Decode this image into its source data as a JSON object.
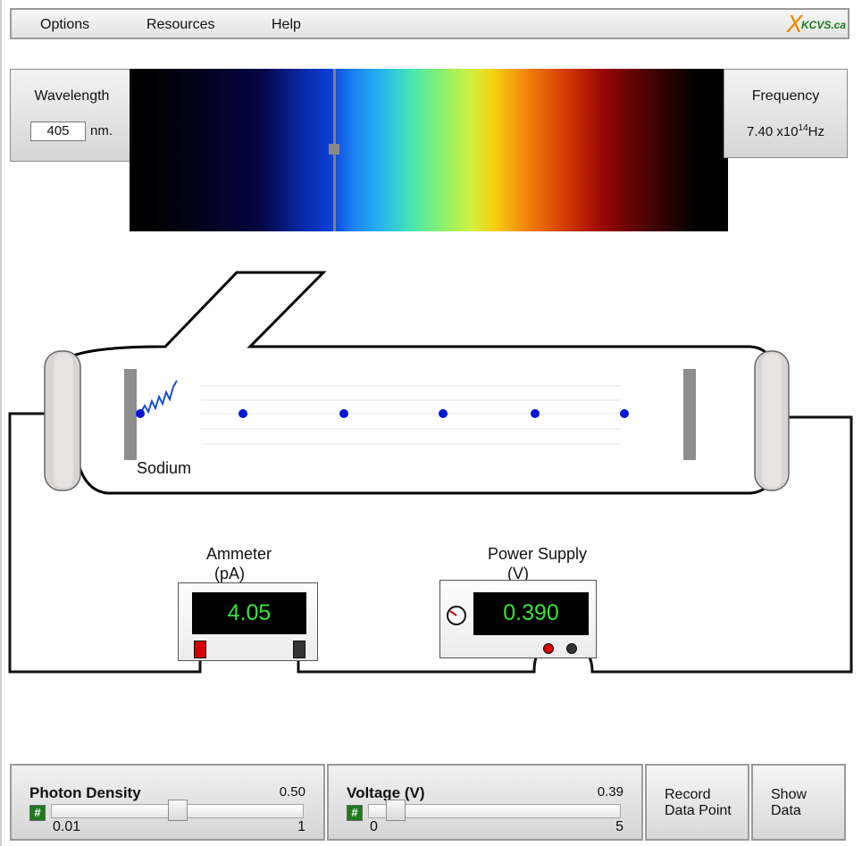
{
  "menu": {
    "items": [
      "Options",
      "Resources",
      "Help"
    ]
  },
  "logo": {
    "mark": "X",
    "text": "KCVS.ca"
  },
  "wavelength": {
    "title": "Wavelength",
    "value": "405",
    "unit": "nm."
  },
  "frequency": {
    "title": "Frequency",
    "mantissa": "7.40 x10",
    "exponent": "14",
    "unit": "Hz"
  },
  "spectrum": {
    "marker_nm": 405
  },
  "apparatus": {
    "cathode_label": "Sodium",
    "photon_icon": "photon-wave-icon",
    "electron_count": 6
  },
  "ammeter": {
    "label": "Ammeter",
    "unit": "(pA)",
    "reading": "4.05",
    "terminal_colors": [
      "#d40000",
      "#333333"
    ]
  },
  "power_supply": {
    "label": "Power Supply",
    "unit": "(V)",
    "reading": "0.390",
    "dial_icon": "dial-icon"
  },
  "controls": {
    "photon_density": {
      "title": "Photon Density",
      "value": "0.50",
      "min": "0.01",
      "max": "1",
      "fraction": 0.5,
      "hash": "#"
    },
    "voltage": {
      "title": "Voltage (V)",
      "value": "0.39",
      "min": "0",
      "max": "5",
      "fraction": 0.078,
      "hash": "#"
    }
  },
  "buttons": {
    "record": {
      "line1": "Record",
      "line2": "Data Point"
    },
    "show": {
      "line1": "Show",
      "line2": "Data"
    }
  },
  "colors": {
    "lcd_text": "#37e337",
    "electron": "#0018d6",
    "photon": "#1a4fe0",
    "logo_mark": "#f08a00",
    "logo_text": "#1d7a1d"
  }
}
